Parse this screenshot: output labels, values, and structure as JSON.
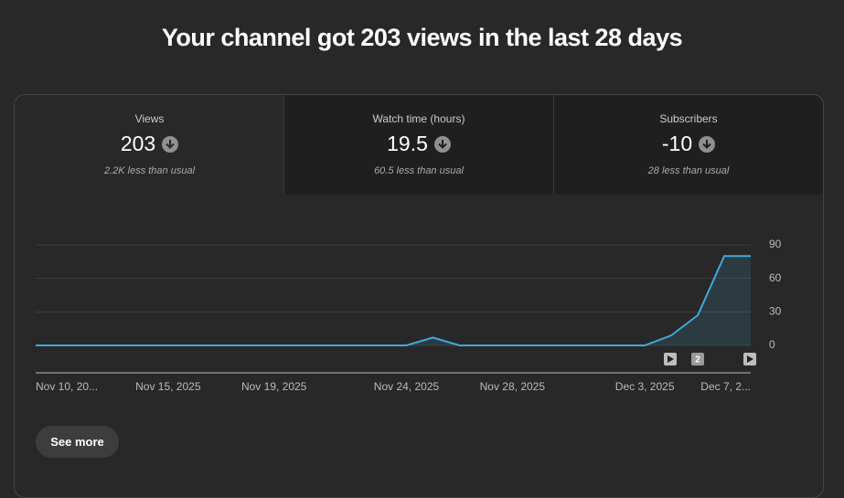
{
  "header": {
    "title": "Your channel got 203 views in the last 28 days"
  },
  "tabs": [
    {
      "label": "Views",
      "value": "203",
      "note": "2.2K less than usual"
    },
    {
      "label": "Watch time (hours)",
      "value": "19.5",
      "note": "60.5 less than usual"
    },
    {
      "label": "Subscribers",
      "value": "-10",
      "note": "28 less than usual"
    }
  ],
  "chart_data": {
    "type": "line",
    "categories": [
      "Nov 10, 20...",
      null,
      null,
      null,
      null,
      "Nov 15, 2025",
      null,
      null,
      null,
      "Nov 19, 2025",
      null,
      null,
      null,
      null,
      "Nov 24, 2025",
      null,
      null,
      null,
      "Nov 28, 2025",
      null,
      null,
      null,
      null,
      "Dec 3, 2025",
      null,
      null,
      null,
      "Dec 7, 2..."
    ],
    "series": [
      {
        "name": "Views",
        "color": "#41a9d9",
        "values": [
          0,
          0,
          0,
          0,
          0,
          0,
          0,
          0,
          0,
          0,
          0,
          0,
          0,
          0,
          0,
          7,
          0,
          0,
          0,
          0,
          0,
          0,
          0,
          0,
          9,
          27,
          80,
          80
        ]
      }
    ],
    "ylim": [
      0,
      90
    ],
    "yticks": [
      0,
      30,
      60,
      90
    ],
    "grid": true,
    "event_badge": "2"
  },
  "button": {
    "label": "See more"
  }
}
